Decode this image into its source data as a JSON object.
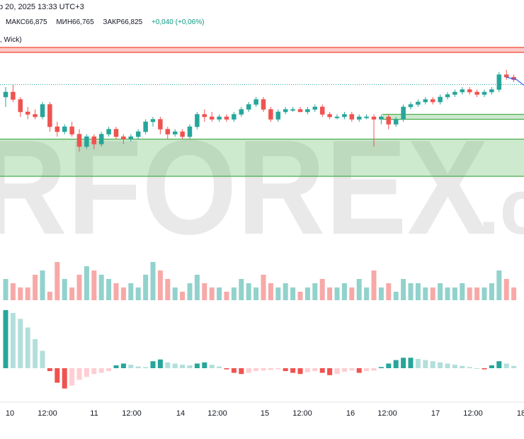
{
  "header": {
    "line1": "р 20, 2025 13:33 UTC+3",
    "high": "МАКС66,875",
    "low": "МИН66,765",
    "close": "ЗАКР66,825",
    "change": "+0,040 (+0,06%)",
    "line3": ", Wick)"
  },
  "watermark": {
    "text": "RFOREX",
    "suffix": ".c"
  },
  "colors": {
    "up": "#26a69a",
    "down": "#ef5350",
    "up_light": "#b2dfdb",
    "down_light": "#ffcdd2",
    "zone_green": "#4caf50",
    "zone_red": "#f44336"
  },
  "x_axis": {
    "labels": [
      "10",
      "12:00",
      "11",
      "12:00",
      "14",
      "12:00",
      "15",
      "12:00",
      "16",
      "12:00",
      "17",
      "12:00",
      "18"
    ]
  },
  "chart_data": {
    "type": "candlestick",
    "price_range": [
      66.3,
      67.1
    ],
    "candles": [
      [
        66.88,
        66.92,
        66.84,
        66.9
      ],
      [
        66.9,
        66.93,
        66.86,
        66.87
      ],
      [
        66.87,
        66.88,
        66.8,
        66.82
      ],
      [
        66.82,
        66.84,
        66.79,
        66.81
      ],
      [
        66.81,
        66.83,
        66.79,
        66.8
      ],
      [
        66.8,
        66.86,
        66.79,
        66.85
      ],
      [
        66.85,
        66.86,
        66.74,
        66.76
      ],
      [
        66.76,
        66.78,
        66.72,
        66.74
      ],
      [
        66.74,
        66.77,
        66.73,
        66.76
      ],
      [
        66.76,
        66.78,
        66.72,
        66.73
      ],
      [
        66.73,
        66.75,
        66.66,
        66.68
      ],
      [
        66.68,
        66.73,
        66.67,
        66.72
      ],
      [
        66.72,
        66.73,
        66.67,
        66.69
      ],
      [
        66.69,
        66.74,
        66.68,
        66.73
      ],
      [
        66.73,
        66.76,
        66.72,
        66.75
      ],
      [
        66.75,
        66.76,
        66.71,
        66.72
      ],
      [
        66.72,
        66.73,
        66.69,
        66.71
      ],
      [
        66.71,
        66.73,
        66.7,
        66.72
      ],
      [
        66.72,
        66.75,
        66.71,
        66.74
      ],
      [
        66.74,
        66.79,
        66.73,
        66.78
      ],
      [
        66.78,
        66.8,
        66.76,
        66.79
      ],
      [
        66.79,
        66.8,
        66.73,
        66.75
      ],
      [
        66.75,
        66.76,
        66.71,
        66.73
      ],
      [
        66.73,
        66.75,
        66.72,
        66.74
      ],
      [
        66.74,
        66.75,
        66.71,
        66.72
      ],
      [
        66.72,
        66.77,
        66.71,
        66.76
      ],
      [
        66.76,
        66.82,
        66.75,
        66.81
      ],
      [
        66.81,
        66.83,
        66.78,
        66.8
      ],
      [
        66.8,
        66.82,
        66.78,
        66.79
      ],
      [
        66.79,
        66.81,
        66.78,
        66.8
      ],
      [
        66.8,
        66.81,
        66.78,
        66.79
      ],
      [
        66.79,
        66.82,
        66.78,
        66.81
      ],
      [
        66.81,
        66.84,
        66.8,
        66.83
      ],
      [
        66.83,
        66.86,
        66.82,
        66.85
      ],
      [
        66.85,
        66.88,
        66.84,
        66.87
      ],
      [
        66.87,
        66.88,
        66.82,
        66.83
      ],
      [
        66.83,
        66.84,
        66.78,
        66.79
      ],
      [
        66.79,
        66.83,
        66.78,
        66.82
      ],
      [
        66.82,
        66.84,
        66.81,
        66.83
      ],
      [
        66.83,
        66.84,
        66.82,
        66.83
      ],
      [
        66.83,
        66.84,
        66.82,
        66.82
      ],
      [
        66.82,
        66.84,
        66.81,
        66.83
      ],
      [
        66.83,
        66.85,
        66.82,
        66.84
      ],
      [
        66.84,
        66.85,
        66.8,
        66.81
      ],
      [
        66.81,
        66.82,
        66.79,
        66.8
      ],
      [
        66.8,
        66.81,
        66.79,
        66.8
      ],
      [
        66.8,
        66.82,
        66.79,
        66.81
      ],
      [
        66.81,
        66.82,
        66.78,
        66.79
      ],
      [
        66.79,
        66.81,
        66.78,
        66.8
      ],
      [
        66.8,
        66.81,
        66.79,
        66.8
      ],
      [
        66.8,
        66.81,
        66.68,
        66.79
      ],
      [
        66.79,
        66.81,
        66.77,
        66.8
      ],
      [
        66.8,
        66.81,
        66.75,
        66.77
      ],
      [
        66.77,
        66.8,
        66.76,
        66.79
      ],
      [
        66.79,
        66.85,
        66.78,
        66.84
      ],
      [
        66.84,
        66.86,
        66.83,
        66.85
      ],
      [
        66.85,
        66.87,
        66.84,
        66.86
      ],
      [
        66.86,
        66.88,
        66.85,
        66.87
      ],
      [
        66.87,
        66.88,
        66.85,
        66.86
      ],
      [
        66.86,
        66.89,
        66.85,
        66.88
      ],
      [
        66.88,
        66.9,
        66.87,
        66.89
      ],
      [
        66.89,
        66.91,
        66.88,
        66.9
      ],
      [
        66.9,
        66.92,
        66.89,
        66.91
      ],
      [
        66.91,
        66.92,
        66.89,
        66.9
      ],
      [
        66.9,
        66.91,
        66.88,
        66.89
      ],
      [
        66.89,
        66.91,
        66.88,
        66.9
      ],
      [
        66.9,
        66.92,
        66.89,
        66.91
      ],
      [
        66.91,
        66.98,
        66.9,
        66.97
      ],
      [
        66.97,
        66.99,
        66.95,
        66.96
      ],
      [
        66.96,
        66.97,
        66.94,
        66.95
      ]
    ],
    "volume": [
      5,
      4,
      3,
      3,
      6,
      7,
      2,
      9,
      5,
      3,
      6,
      8,
      7,
      6,
      5,
      4,
      3,
      4,
      3,
      6,
      9,
      7,
      5,
      3,
      2,
      4,
      6,
      4,
      3,
      3,
      2,
      3,
      5,
      4,
      3,
      6,
      4,
      3,
      4,
      3,
      2,
      3,
      4,
      5,
      3,
      3,
      4,
      3,
      5,
      3,
      7,
      3,
      4,
      2,
      5,
      4,
      4,
      3,
      3,
      4,
      3,
      3,
      4,
      3,
      3,
      3,
      4,
      7,
      5,
      3
    ],
    "oscillator": [
      1.0,
      0.95,
      0.85,
      0.7,
      0.5,
      0.3,
      -0.05,
      -0.25,
      -0.35,
      -0.3,
      -0.2,
      -0.15,
      -0.1,
      -0.08,
      -0.05,
      0.05,
      0.08,
      0.06,
      0.03,
      0.02,
      0.12,
      0.15,
      0.1,
      0.08,
      0.06,
      0.05,
      0.08,
      0.1,
      0.06,
      0.03,
      -0.02,
      -0.08,
      -0.1,
      -0.08,
      -0.05,
      -0.04,
      -0.03,
      -0.02,
      -0.05,
      -0.08,
      -0.1,
      -0.07,
      -0.05,
      -0.08,
      -0.12,
      -0.1,
      -0.06,
      -0.04,
      -0.08,
      -0.05,
      -0.04,
      0.02,
      0.08,
      0.14,
      0.18,
      0.18,
      0.16,
      0.14,
      0.12,
      0.1,
      0.08,
      0.06,
      0.04,
      0.02,
      0.0,
      -0.02,
      0.05,
      0.12,
      0.08,
      0.04
    ],
    "zones": [
      {
        "type": "resistance",
        "low": 67.06,
        "high": 67.08
      },
      {
        "type": "support",
        "low": 66.79,
        "high": 66.81
      },
      {
        "type": "support",
        "low": 66.56,
        "high": 66.71
      }
    ],
    "reference_level": 66.93
  }
}
